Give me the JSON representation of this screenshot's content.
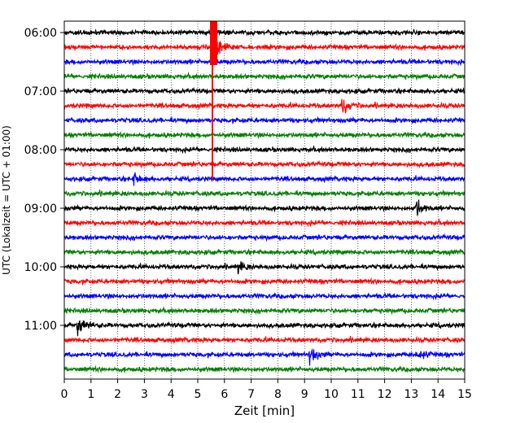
{
  "chart_data": {
    "type": "line",
    "title": "",
    "xlabel": "Zeit  [min]",
    "ylabel": "UTC (Lokalzeit = UTC + 01:00)",
    "xlim": [
      0,
      15
    ],
    "x_ticks": [
      0,
      1,
      2,
      3,
      4,
      5,
      6,
      7,
      8,
      9,
      10,
      11,
      12,
      13,
      14,
      15
    ],
    "x_tick_labels": [
      "0",
      "1",
      "2",
      "3",
      "4",
      "5",
      "6",
      "7",
      "8",
      "9",
      "10",
      "11",
      "12",
      "13",
      "14",
      "15"
    ],
    "y_tick_labels": [
      "06:00",
      "07:00",
      "08:00",
      "09:00",
      "10:00",
      "11:00"
    ],
    "trace_interval_min": 15,
    "first_trace": "06:00",
    "trace_count": 24,
    "trace_colors": [
      "#000000",
      "#ff0000",
      "#0000ff",
      "#008000"
    ],
    "grid": "vertical dotted",
    "events": [
      {
        "trace": "06:15",
        "x_min": 5.55,
        "amplitude": "very large"
      },
      {
        "trace": "07:15",
        "x_min": 10.4,
        "amplitude": "medium"
      },
      {
        "trace": "08:30",
        "x_min": 2.6,
        "amplitude": "small"
      },
      {
        "trace": "09:00",
        "x_min": 13.2,
        "amplitude": "medium"
      },
      {
        "trace": "10:00",
        "x_min": 6.5,
        "amplitude": "small"
      },
      {
        "trace": "11:00",
        "x_min": 0.5,
        "amplitude": "medium"
      },
      {
        "trace": "11:30",
        "x_min": 9.2,
        "amplitude": "medium"
      },
      {
        "trace": "11:30",
        "x_min": 13.2,
        "amplitude": "small"
      }
    ]
  }
}
